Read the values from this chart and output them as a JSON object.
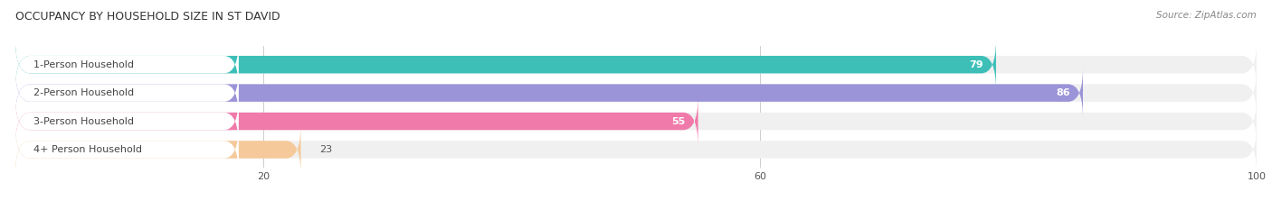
{
  "title": "OCCUPANCY BY HOUSEHOLD SIZE IN ST DAVID",
  "source": "Source: ZipAtlas.com",
  "categories": [
    "1-Person Household",
    "2-Person Household",
    "3-Person Household",
    "4+ Person Household"
  ],
  "values": [
    79,
    86,
    55,
    23
  ],
  "bar_colors": [
    "#3dbfb8",
    "#9b94d8",
    "#f07aaa",
    "#f5c99a"
  ],
  "bar_bg_color": "#f0f0f0",
  "xlim": [
    0,
    100
  ],
  "xticks": [
    20,
    60,
    100
  ],
  "figsize": [
    14.06,
    2.33
  ],
  "dpi": 100,
  "title_fontsize": 9,
  "label_fontsize": 8,
  "value_fontsize": 8,
  "source_fontsize": 7.5
}
